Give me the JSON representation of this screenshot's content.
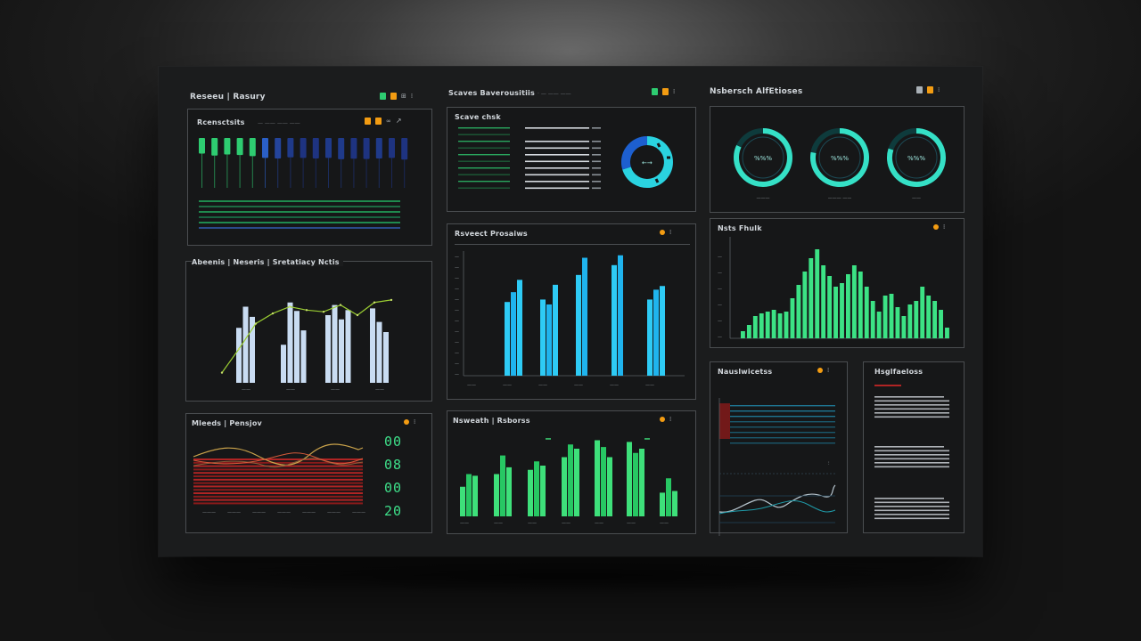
{
  "header_left": {
    "title": "Reseeu | Rasury"
  },
  "header_mid": {
    "title": "Scaves Baverousitiis",
    "subtitle": "· — —— ——"
  },
  "header_right": {
    "title": "Nsbersch AlfEtioses"
  },
  "panel_bars_top": {
    "title": "Rcensctsits",
    "subtitle": "— —— —— ——",
    "bars": [
      0.55,
      0.62,
      0.58,
      0.6,
      0.64,
      0.7,
      0.72,
      0.68,
      0.7,
      0.72,
      0.7,
      0.75,
      0.73,
      0.74,
      0.72,
      0.7,
      0.76
    ],
    "bar_colors": [
      "#2ecc71",
      "#2ecc71",
      "#2ecc71",
      "#2ecc71",
      "#2ecc71",
      "#2a5fc7",
      "#24449b",
      "#1f3a8a",
      "#1e3380",
      "#1e3380",
      "#1f3a8a",
      "#1f3a8a",
      "#1e3380",
      "#1e3380",
      "#1f3a8a",
      "#1e3380",
      "#1e3380"
    ]
  },
  "panel_list_top": {
    "title": "Scave chsk",
    "gauge_label": "←→"
  },
  "panel_gauges": {
    "gauges": [
      {
        "label": "%%%",
        "caption": "———",
        "value": 0.82
      },
      {
        "label": "%%%",
        "caption": "——— ——",
        "value": 0.78
      },
      {
        "label": "%%%",
        "caption": "——",
        "value": 0.8
      }
    ]
  },
  "panel_combo": {
    "title": "Abeenis | Neseris | Sretatiacy Nctis",
    "groups": [
      [
        0.65,
        0.9,
        0.78
      ],
      [
        0.45,
        0.95,
        0.85,
        0.62
      ],
      [
        0.8,
        0.92,
        0.75,
        0.86
      ],
      [
        0.88,
        0.72,
        0.6
      ]
    ],
    "line": [
      0.12,
      0.4,
      0.7,
      0.82,
      0.9,
      0.86,
      0.84,
      0.92,
      0.8,
      0.95,
      0.98
    ]
  },
  "panel_blue": {
    "title": "Rsveect Prosaiws",
    "y_ticks": [
      "—",
      "—",
      "—",
      "—",
      "—",
      "—",
      "—",
      "—",
      "—",
      "—",
      "—",
      "—"
    ],
    "x_ticks": [
      "——",
      "——",
      "——",
      "——",
      "——",
      "——"
    ],
    "groups": [
      [
        0.6,
        0.68,
        0.78
      ],
      [
        0.62,
        0.58,
        0.74
      ],
      [
        0.82,
        0.96
      ],
      [
        0.9,
        0.98
      ],
      [
        0.62,
        0.7,
        0.73
      ]
    ]
  },
  "panel_histo": {
    "title": "Nsts Fhulk",
    "bars": [
      0.08,
      0.15,
      0.25,
      0.28,
      0.3,
      0.32,
      0.28,
      0.3,
      0.45,
      0.6,
      0.75,
      0.9,
      1.0,
      0.82,
      0.7,
      0.58,
      0.62,
      0.72,
      0.82,
      0.75,
      0.58,
      0.42,
      0.3,
      0.48,
      0.5,
      0.35,
      0.25,
      0.38,
      0.42,
      0.58,
      0.48,
      0.42,
      0.32,
      0.12
    ]
  },
  "panel_area": {
    "title": "Mleeds | Pensjov",
    "digits": [
      "00",
      "08",
      "00",
      "20"
    ]
  },
  "panel_green": {
    "title": "Nsweath | Rsborss",
    "groups": [
      [
        0.35,
        0.5,
        0.48
      ],
      [
        0.5,
        0.72,
        0.58
      ],
      [
        0.55,
        0.65,
        0.6
      ],
      [
        0.7,
        0.85,
        0.8
      ],
      [
        0.9,
        0.82,
        0.7
      ],
      [
        0.88,
        0.75,
        0.8
      ],
      [
        0.28,
        0.45,
        0.3
      ]
    ]
  },
  "panel_lines": {
    "title": "Nauslwicetss"
  },
  "panel_text": {
    "title": "Hsglfaeloss"
  }
}
